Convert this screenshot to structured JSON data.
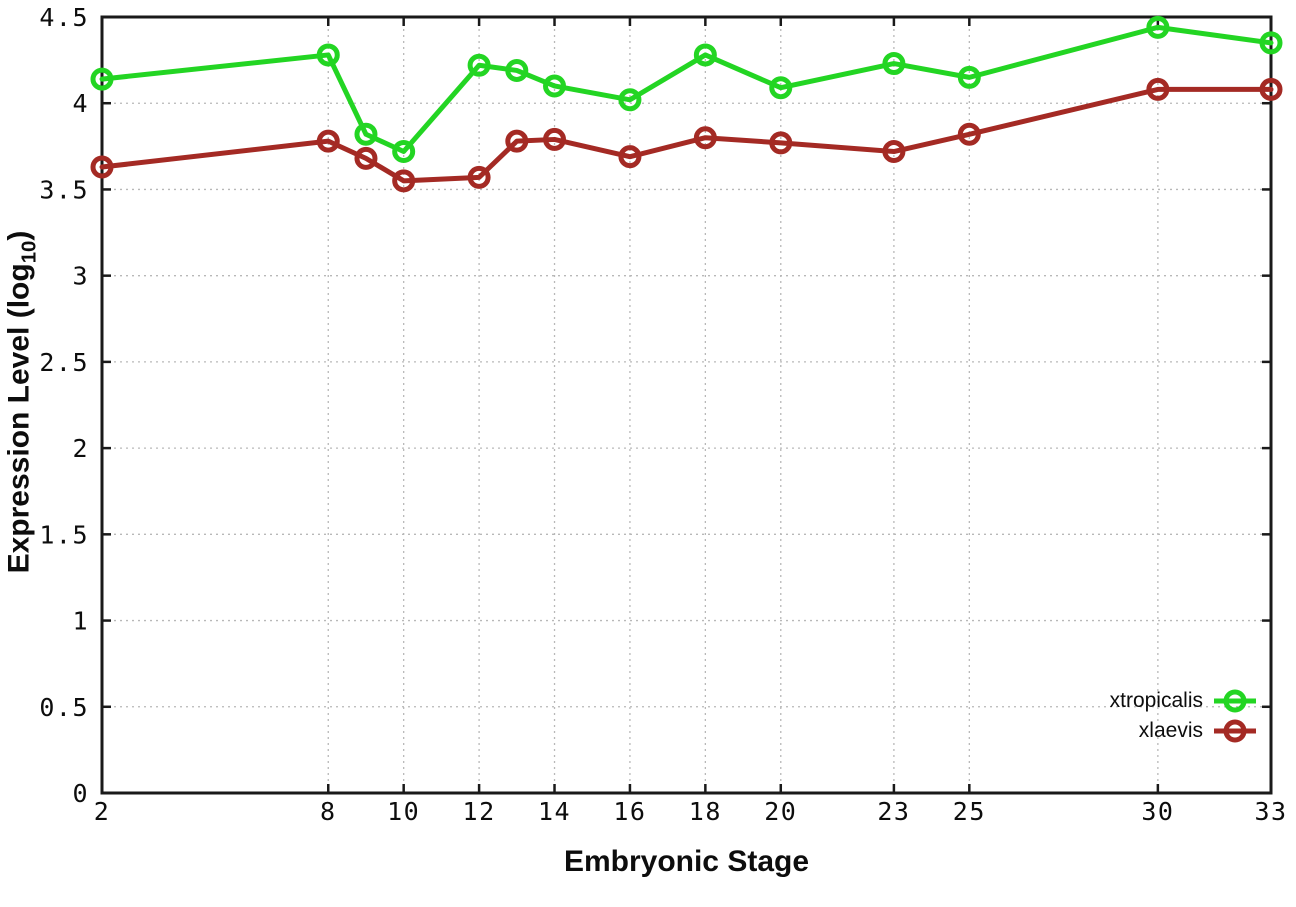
{
  "chart_data": {
    "type": "line",
    "title": "",
    "xlabel": "Embryonic Stage",
    "ylabel": "Expression Level (log10)",
    "ylabel_parts": {
      "main": "Expression Level (log",
      "sub": "10",
      "end": ")"
    },
    "x": [
      2,
      8,
      9,
      10,
      12,
      13,
      14,
      16,
      18,
      20,
      23,
      25,
      30,
      33
    ],
    "x_ticks": [
      "2",
      "8",
      "10",
      "12",
      "14",
      "16",
      "18",
      "20",
      "23",
      "25",
      "30",
      "33"
    ],
    "x_tick_values": [
      2,
      8,
      10,
      12,
      14,
      16,
      18,
      20,
      23,
      25,
      30,
      33
    ],
    "y_ticks": [
      "0",
      "0.5",
      "1",
      "1.5",
      "2",
      "2.5",
      "3",
      "3.5",
      "4",
      "4.5"
    ],
    "y_tick_values": [
      0,
      0.5,
      1,
      1.5,
      2,
      2.5,
      3,
      3.5,
      4,
      4.5
    ],
    "xlim": [
      2,
      33
    ],
    "ylim": [
      0,
      4.5
    ],
    "grid": true,
    "legend_position": "bottom-right",
    "series": [
      {
        "name": "xtropicalis",
        "color": "#23d523",
        "values": [
          4.14,
          4.28,
          3.82,
          3.72,
          4.22,
          4.19,
          4.1,
          4.02,
          4.28,
          4.09,
          4.23,
          4.15,
          4.44,
          4.35
        ]
      },
      {
        "name": "xlaevis",
        "color": "#a42a24",
        "values": [
          3.63,
          3.78,
          3.68,
          3.55,
          3.57,
          3.78,
          3.79,
          3.69,
          3.8,
          3.77,
          3.72,
          3.82,
          4.08,
          4.08
        ]
      }
    ]
  },
  "colors": {
    "border": "#1a1a1a",
    "grid": "#b8b8b8",
    "tick_text": "#0d0d0d",
    "background": "#ffffff"
  }
}
